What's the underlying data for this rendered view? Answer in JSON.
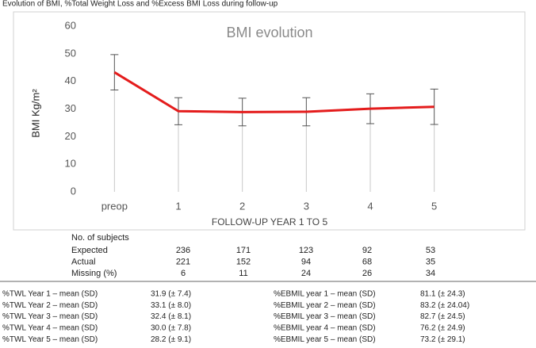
{
  "caption": "Evolution of BMI, %Total Weight Loss and %Excess BMI Loss during follow-up",
  "chart_data": {
    "type": "line",
    "title": "BMI evolution",
    "y_label": "BMI Kg/m²",
    "x_label": "FOLLOW-UP YEAR 1 TO 5",
    "categories": [
      "preop",
      "1",
      "2",
      "3",
      "4",
      "5"
    ],
    "series": [
      {
        "color": "#e41c1c",
        "values": [
          43.3,
          29.2,
          28.9,
          29.0,
          30.1,
          30.8
        ],
        "errors": [
          6.4,
          4.9,
          5.0,
          5.1,
          5.4,
          6.4
        ]
      }
    ],
    "ylim": [
      0,
      60
    ],
    "yticks": [
      0,
      10,
      20,
      30,
      40,
      50,
      60
    ],
    "grid": false
  },
  "subjects": {
    "title": "No. of subjects",
    "rows": [
      {
        "label": "Expected",
        "values": [
          236,
          171,
          123,
          92,
          53
        ]
      },
      {
        "label": "Actual",
        "values": [
          221,
          152,
          94,
          68,
          35
        ]
      },
      {
        "label": "Missing (%)",
        "values": [
          6,
          11,
          24,
          26,
          34
        ]
      }
    ]
  },
  "stats": {
    "left": [
      [
        "%TWL Year 1 – mean (SD)",
        "31.9 (± 7.4)"
      ],
      [
        "%TWL Year 2 – mean (SD)",
        "33.1 (± 8.0)"
      ],
      [
        "%TWL Year 3 – mean (SD)",
        "32.4 (± 8.1)"
      ],
      [
        "%TWL Year 4 – mean (SD)",
        "30.0 (± 7.8)"
      ],
      [
        "%TWL Year 5 – mean (SD)",
        "28.2 (± 9.1)"
      ]
    ],
    "right": [
      [
        "%EBMIL year 1 – mean (SD)",
        "81.1 (± 24.3)"
      ],
      [
        "%EBMIL year 2 – mean (SD)",
        "83.2 (± 24.04)"
      ],
      [
        "%EBMIL year 3 – mean (SD)",
        "82.7 (± 24.5)"
      ],
      [
        "%EBMIL year 4 – mean (SD)",
        "76.2 (± 24.9)"
      ],
      [
        "%EBMIL year 5 – mean (SD)",
        "73.2 (± 29.1)"
      ]
    ]
  }
}
